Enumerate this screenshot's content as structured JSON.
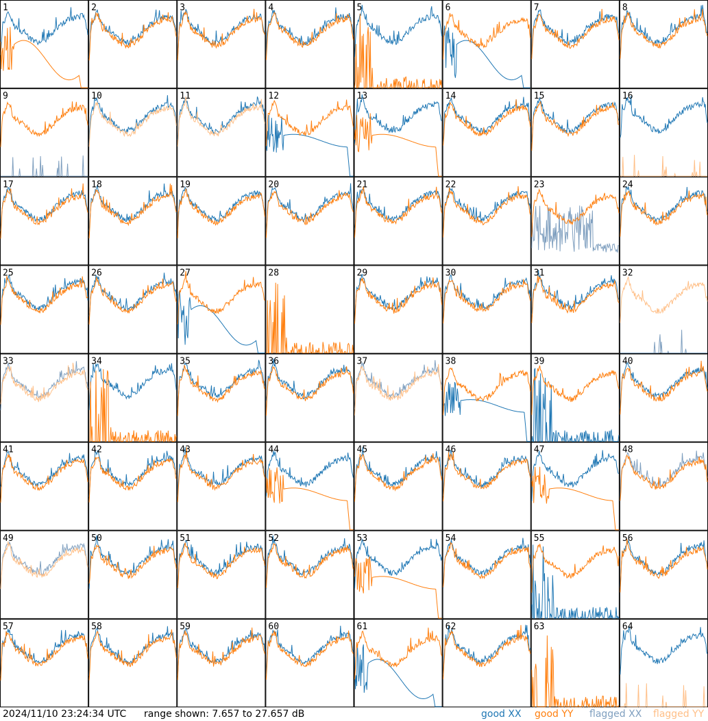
{
  "chart_data": {
    "type": "line",
    "grid": {
      "rows": 8,
      "cols": 8
    },
    "panels": [
      {
        "n": "1",
        "xx": "normal",
        "yy": "dip"
      },
      {
        "n": "2",
        "xx": "normal",
        "yy": "normal"
      },
      {
        "n": "3",
        "xx": "normal",
        "yy": "normal"
      },
      {
        "n": "4",
        "xx": "normal",
        "yy": "normal"
      },
      {
        "n": "5",
        "xx": "normal",
        "yy": "spikes"
      },
      {
        "n": "6",
        "xx": "dip",
        "yy": "normal"
      },
      {
        "n": "7",
        "xx": "normal",
        "yy": "normal"
      },
      {
        "n": "8",
        "xx": "normal",
        "yy": "normal"
      },
      {
        "n": "9",
        "xx": "fspikes",
        "yy": "normal"
      },
      {
        "n": "10",
        "xx": "normal",
        "yy": "fnormal"
      },
      {
        "n": "11",
        "xx": "normal",
        "yy": "fnormal"
      },
      {
        "n": "12",
        "xx": "droop",
        "yy": "normal"
      },
      {
        "n": "13",
        "xx": "normal",
        "yy": "droop"
      },
      {
        "n": "14",
        "xx": "normal",
        "yy": "normal"
      },
      {
        "n": "15",
        "xx": "normal",
        "yy": "normal"
      },
      {
        "n": "16",
        "xx": "normal",
        "yy": "fspikes"
      },
      {
        "n": "17",
        "xx": "normal",
        "yy": "normal"
      },
      {
        "n": "18",
        "xx": "normal",
        "yy": "normal"
      },
      {
        "n": "19",
        "xx": "normal",
        "yy": "normal"
      },
      {
        "n": "20",
        "xx": "normal",
        "yy": "normal"
      },
      {
        "n": "21",
        "xx": "normal",
        "yy": "normal"
      },
      {
        "n": "22",
        "xx": "normal",
        "yy": "normal"
      },
      {
        "n": "23",
        "xx": "fnoise",
        "yy": "normal"
      },
      {
        "n": "24",
        "xx": "normal",
        "yy": "normal"
      },
      {
        "n": "25",
        "xx": "normal",
        "yy": "normal"
      },
      {
        "n": "26",
        "xx": "normal",
        "yy": "normal"
      },
      {
        "n": "27",
        "xx": "dip",
        "yy": "normal"
      },
      {
        "n": "28",
        "xx": "none",
        "yy": "spikes"
      },
      {
        "n": "29",
        "xx": "normal",
        "yy": "normal"
      },
      {
        "n": "30",
        "xx": "normal",
        "yy": "normal"
      },
      {
        "n": "31",
        "xx": "normal",
        "yy": "normal"
      },
      {
        "n": "32",
        "xx": "fspikes",
        "yy": "fnormal"
      },
      {
        "n": "33",
        "xx": "fnormal",
        "yy": "fnormal"
      },
      {
        "n": "34",
        "xx": "normal",
        "yy": "spikes"
      },
      {
        "n": "35",
        "xx": "normal",
        "yy": "normal"
      },
      {
        "n": "36",
        "xx": "normal",
        "yy": "normal"
      },
      {
        "n": "37",
        "xx": "fnormal",
        "yy": "fnormal"
      },
      {
        "n": "38",
        "xx": "droop",
        "yy": "normal"
      },
      {
        "n": "39",
        "xx": "spikes",
        "yy": "normal"
      },
      {
        "n": "40",
        "xx": "normal",
        "yy": "normal"
      },
      {
        "n": "41",
        "xx": "normal",
        "yy": "normal"
      },
      {
        "n": "42",
        "xx": "normal",
        "yy": "normal"
      },
      {
        "n": "43",
        "xx": "normal",
        "yy": "normal"
      },
      {
        "n": "44",
        "xx": "normal",
        "yy": "droop"
      },
      {
        "n": "45",
        "xx": "normal",
        "yy": "normal"
      },
      {
        "n": "46",
        "xx": "normal",
        "yy": "normal"
      },
      {
        "n": "47",
        "xx": "normal",
        "yy": "droop"
      },
      {
        "n": "48",
        "xx": "fnormal",
        "yy": "normal"
      },
      {
        "n": "49",
        "xx": "fnormal",
        "yy": "fnormal"
      },
      {
        "n": "50",
        "xx": "normal",
        "yy": "normal"
      },
      {
        "n": "51",
        "xx": "normal",
        "yy": "normal"
      },
      {
        "n": "52",
        "xx": "normal",
        "yy": "normal"
      },
      {
        "n": "53",
        "xx": "normal",
        "yy": "droop"
      },
      {
        "n": "54",
        "xx": "normal",
        "yy": "normal"
      },
      {
        "n": "55",
        "xx": "spikes",
        "yy": "normal"
      },
      {
        "n": "56",
        "xx": "normal",
        "yy": "normal"
      },
      {
        "n": "57",
        "xx": "normal",
        "yy": "normal"
      },
      {
        "n": "58",
        "xx": "normal",
        "yy": "normal"
      },
      {
        "n": "59",
        "xx": "normal",
        "yy": "normal"
      },
      {
        "n": "60",
        "xx": "normal",
        "yy": "normal"
      },
      {
        "n": "61",
        "xx": "dip",
        "yy": "normal"
      },
      {
        "n": "62",
        "xx": "normal",
        "yy": "normal"
      },
      {
        "n": "63",
        "xx": "none",
        "yy": "spikes"
      },
      {
        "n": "64",
        "xx": "normal",
        "yy": "fspikes"
      }
    ],
    "range_min_db": 7.657,
    "range_max_db": 27.657
  },
  "footer": {
    "timestamp": "2024/11/10 23:24:34 UTC",
    "range_text": "range shown: 7.657 to 27.657 dB"
  },
  "legend": {
    "good_xx": "good XX",
    "good_yy": "good YY",
    "flagged_xx": "flagged XX",
    "flagged_yy": "flagged YY"
  },
  "colors": {
    "good_xx": "#1f77b4",
    "good_yy": "#ff7f0e",
    "flagged_xx": "#7f9fbf",
    "flagged_yy": "#ffbf87"
  }
}
